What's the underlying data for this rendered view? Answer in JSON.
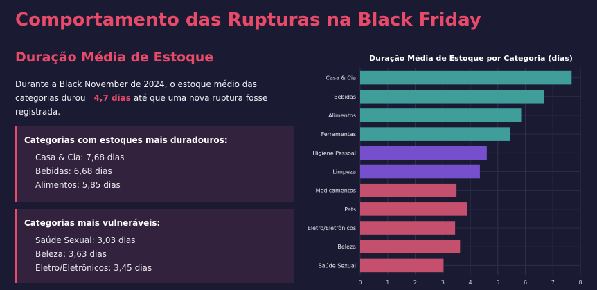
{
  "page_title": "Comportamento das Rupturas na Black Friday",
  "section_title": "Duração Média de Estoque",
  "intro": {
    "before": "Durante a Black November de 2024, o estoque médio das categorias durou",
    "highlight": "4,7 dias",
    "after": "até que uma nova ruptura fosse registrada."
  },
  "durable_card": {
    "title": "Categorias com estoques mais duradouros:",
    "items": [
      "Casa & Cia: 7,68 dias",
      "Bebidas: 6,68 dias",
      "Alimentos: 5,85 dias"
    ]
  },
  "vulnerable_card": {
    "title": "Categorias mais vulneráveis:",
    "items": [
      "Saúde Sexual: 3,03 dias",
      "Beleza: 3,63 dias",
      "Eletro/Eletrônicos: 3,45 dias"
    ]
  },
  "colors": {
    "background": "#1a1b33",
    "accent": "#e84a6a",
    "teal": "#3f9d9a",
    "purple": "#7650cc",
    "pink": "#c4506e"
  },
  "chart_data": {
    "type": "bar",
    "orientation": "horizontal",
    "title": "Duração Média de Estoque por Categoria (dias)",
    "categories": [
      "Casa & Cia",
      "Bebidas",
      "Alimentos",
      "Ferramentas",
      "Higiene Pessoal",
      "Limpeza",
      "Medicamentos",
      "Pets",
      "Eletro/Eletrônicos",
      "Beleza",
      "Saúde Sexual"
    ],
    "values": [
      7.68,
      6.68,
      5.85,
      5.44,
      4.6,
      4.35,
      3.5,
      3.9,
      3.45,
      3.63,
      3.03
    ],
    "bar_colors": [
      "#3f9d9a",
      "#3f9d9a",
      "#3f9d9a",
      "#3f9d9a",
      "#7650cc",
      "#7650cc",
      "#c4506e",
      "#c4506e",
      "#c4506e",
      "#c4506e",
      "#c4506e"
    ],
    "xlim": [
      0,
      8
    ],
    "xticks": [
      0,
      1,
      2,
      3,
      4,
      5,
      6,
      7,
      8
    ],
    "grid": true,
    "legend": "none"
  }
}
